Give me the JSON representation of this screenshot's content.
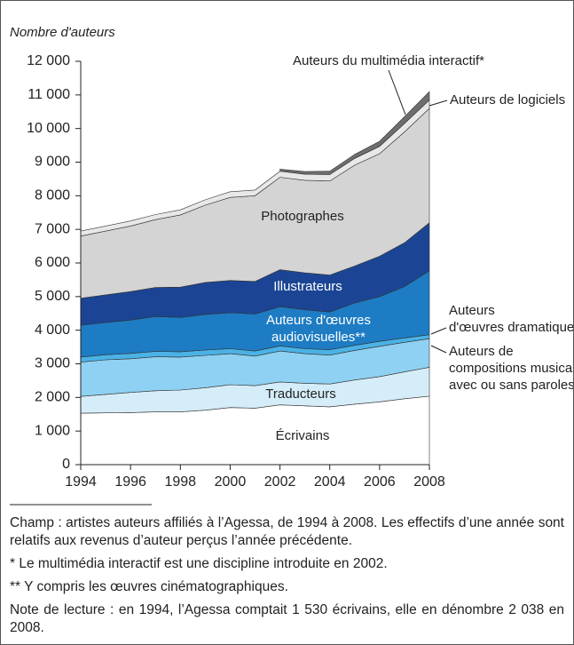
{
  "chart_data": {
    "type": "stacked_area",
    "y_axis_label": "Nombre d'auteurs",
    "x": [
      1994,
      1995,
      1996,
      1997,
      1998,
      1999,
      2000,
      2001,
      2002,
      2003,
      2004,
      2005,
      2006,
      2007,
      2008
    ],
    "xlim": [
      1994,
      2008
    ],
    "xticks": [
      1994,
      1996,
      1998,
      2000,
      2002,
      2004,
      2006,
      2008
    ],
    "ylim": [
      0,
      12000
    ],
    "yticks": [
      0,
      {
        "value": 1000,
        "label": "1 000"
      },
      {
        "value": 2000,
        "label": "2 000"
      },
      {
        "value": 3000,
        "label": "3 000"
      },
      {
        "value": 4000,
        "label": "4 000"
      },
      {
        "value": 5000,
        "label": "5 000"
      },
      {
        "value": 6000,
        "label": "6 000"
      },
      {
        "value": 7000,
        "label": "7 000"
      },
      {
        "value": 8000,
        "label": "8 000"
      },
      {
        "value": 9000,
        "label": "9 000"
      },
      {
        "value": 10000,
        "label": "10 000"
      },
      {
        "value": 11000,
        "label": "11 000"
      },
      {
        "value": 12000,
        "label": "12 000"
      }
    ],
    "series": [
      {
        "name": "Écrivains",
        "color": "#ffffff",
        "values": [
          1530,
          1540,
          1550,
          1570,
          1570,
          1620,
          1700,
          1680,
          1780,
          1750,
          1720,
          1800,
          1870,
          1960,
          2038
        ]
      },
      {
        "name": "Traducteurs",
        "color": "#d5edf9",
        "values": [
          500,
          550,
          600,
          630,
          650,
          670,
          680,
          670,
          680,
          670,
          680,
          720,
          750,
          800,
          860
        ]
      },
      {
        "name": "Auteurs de compositions musicales avec ou sans paroles",
        "color": "#8fd1f2",
        "values": [
          1020,
          1030,
          1000,
          1010,
          980,
          960,
          920,
          880,
          920,
          880,
          860,
          880,
          900,
          880,
          850
        ]
      },
      {
        "name": "Auteurs d'œuvres dramatiques",
        "color": "#4ab2e6",
        "values": [
          150,
          150,
          160,
          160,
          160,
          160,
          150,
          150,
          150,
          150,
          160,
          150,
          150,
          130,
          120
        ]
      },
      {
        "name": "Auteurs d'œuvres audiovisuelles**",
        "color": "#1d7cc3",
        "values": [
          950,
          960,
          990,
          1040,
          1020,
          1060,
          1070,
          1100,
          1170,
          1160,
          1120,
          1260,
          1330,
          1530,
          1900
        ]
      },
      {
        "name": "Illustrateurs",
        "color": "#1b4594",
        "values": [
          800,
          820,
          850,
          860,
          900,
          950,
          960,
          970,
          1100,
          1100,
          1100,
          1100,
          1200,
          1300,
          1430
        ]
      },
      {
        "name": "Photographes",
        "color": "#d4d4d4",
        "values": [
          1850,
          1900,
          1950,
          2020,
          2150,
          2300,
          2470,
          2550,
          2750,
          2750,
          2800,
          3000,
          3050,
          3300,
          3400
        ]
      },
      {
        "name": "Auteurs de logiciels",
        "color": "#e8e8e8",
        "values": [
          150,
          150,
          150,
          150,
          150,
          160,
          170,
          170,
          180,
          180,
          190,
          200,
          220,
          250,
          250
        ]
      },
      {
        "name": "Auteurs du multimédia interactif*",
        "color": "#6e6e6e",
        "values": [
          null,
          null,
          null,
          null,
          null,
          null,
          null,
          null,
          60,
          80,
          100,
          120,
          150,
          200,
          250
        ]
      }
    ],
    "labels": [
      {
        "lines": [
          "Écrivains"
        ]
      },
      {
        "lines": [
          "Traducteurs"
        ]
      },
      {
        "lines": [
          "Auteurs de",
          "compositions musicales",
          "avec ou sans paroles"
        ]
      },
      {
        "lines": [
          "Auteurs",
          "d'œuvres dramatiques"
        ]
      },
      {
        "lines": [
          "Auteurs d'œuvres",
          "audiovisuelles**"
        ]
      },
      {
        "lines": [
          "Illustrateurs"
        ]
      },
      {
        "lines": [
          "Photographes"
        ]
      },
      {
        "lines": [
          "Auteurs de logiciels"
        ]
      },
      {
        "lines": [
          "Auteurs du multimédia interactif*"
        ]
      }
    ]
  },
  "notes": [
    "Champ : artistes auteurs affiliés à l’Agessa, de 1994 à 2008. Les effectifs d’une année sont relatifs aux revenus d’auteur perçus l’année précédente.",
    "* Le multimédia interactif est une discipline introduite en 2002.",
    "** Y compris les œuvres cinématographiques.",
    "Note de lecture : en 1994, l’Agessa comptait 1 530 écrivains, elle en dénombre 2 038 en 2008."
  ]
}
